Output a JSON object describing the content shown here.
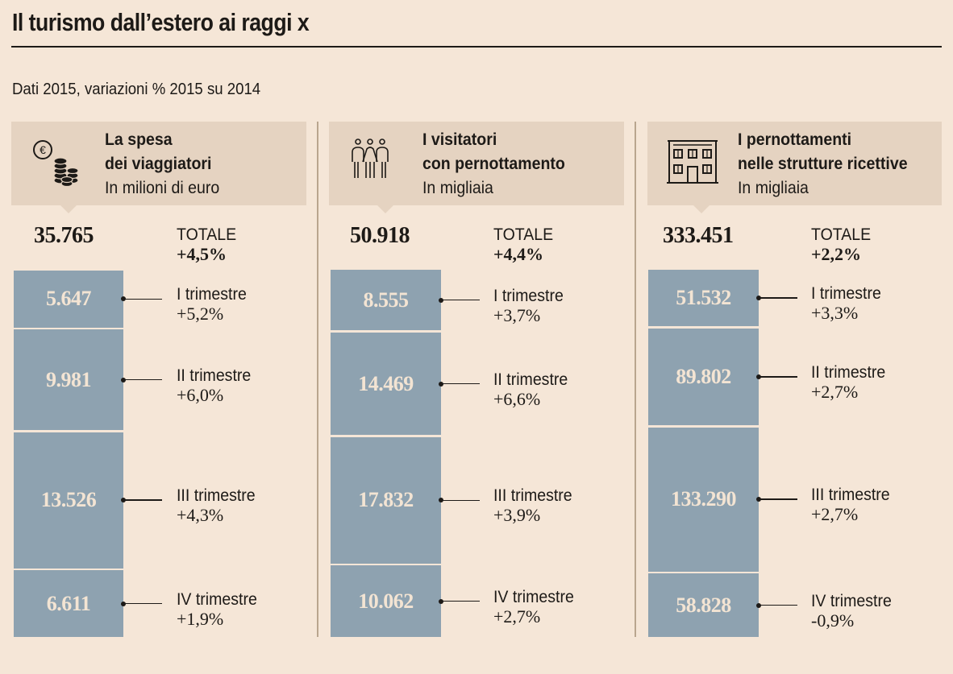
{
  "header": {
    "title": "Il turismo dall’estero ai raggi x",
    "subtitle": "Dati 2015, variazioni % 2015 su 2014"
  },
  "colors": {
    "background": "#f5e6d7",
    "header_box": "#e5d3c1",
    "bar": "#8ea2b0",
    "bar_text": "#f3e4d3",
    "text": "#1d1a17",
    "divider": "#b9a58e"
  },
  "panels": [
    {
      "icon": "coins-euro-icon",
      "title_line1": "La spesa",
      "title_line2": "dei viaggiatori",
      "unit": "In milioni di euro",
      "total_value": "35.765",
      "total_label": "TOTALE",
      "total_change": "+4,5%"
    },
    {
      "icon": "people-icon",
      "title_line1": "I visitatori",
      "title_line2": "con pernottamento",
      "unit": "In migliaia",
      "total_value": "50.918",
      "total_label": "TOTALE",
      "total_change": "+4,4%"
    },
    {
      "icon": "building-icon",
      "title_line1": "I pernottamenti",
      "title_line2": "nelle strutture ricettive",
      "unit": "In migliaia",
      "total_value": "333.451",
      "total_label": "TOTALE",
      "total_change": "+2,2%"
    }
  ],
  "chart_data": [
    {
      "type": "bar",
      "stacked": true,
      "title": "La spesa dei viaggiatori",
      "unit": "In milioni di euro",
      "categories": [
        "I trimestre",
        "II trimestre",
        "III trimestre",
        "IV trimestre"
      ],
      "values": [
        5647,
        9981,
        13526,
        6611
      ],
      "value_labels": [
        "5.647",
        "9.981",
        "13.526",
        "6.611"
      ],
      "changes": [
        "+5,2%",
        "+6,0%",
        "+4,3%",
        "+1,9%"
      ],
      "total": 35765
    },
    {
      "type": "bar",
      "stacked": true,
      "title": "I visitatori con pernottamento",
      "unit": "In migliaia",
      "categories": [
        "I trimestre",
        "II trimestre",
        "III trimestre",
        "IV trimestre"
      ],
      "values": [
        8555,
        14469,
        17832,
        10062
      ],
      "value_labels": [
        "8.555",
        "14.469",
        "17.832",
        "10.062"
      ],
      "changes": [
        "+3,7%",
        "+6,6%",
        "+3,9%",
        "+2,7%"
      ],
      "total": 50918
    },
    {
      "type": "bar",
      "stacked": true,
      "title": "I pernottamenti nelle strutture ricettive",
      "unit": "In migliaia",
      "categories": [
        "I trimestre",
        "II trimestre",
        "III trimestre",
        "IV trimestre"
      ],
      "values": [
        51532,
        89802,
        133290,
        58828
      ],
      "value_labels": [
        "51.532",
        "89.802",
        "133.290",
        "58.828"
      ],
      "changes": [
        "+3,3%",
        "+2,7%",
        "+2,7%",
        "-0,9%"
      ],
      "total": 333451
    }
  ]
}
